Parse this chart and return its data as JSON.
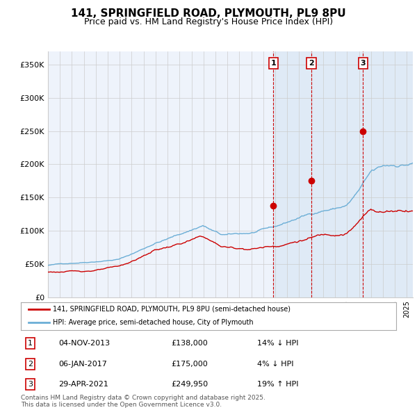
{
  "title": "141, SPRINGFIELD ROAD, PLYMOUTH, PL9 8PU",
  "subtitle": "Price paid vs. HM Land Registry's House Price Index (HPI)",
  "title_fontsize": 11,
  "subtitle_fontsize": 9,
  "hpi_color": "#6baed6",
  "price_color": "#cc0000",
  "bg_color": "#ffffff",
  "plot_bg_color": "#eef3fb",
  "grid_color": "#cccccc",
  "shaded_region_color": "#dce8f5",
  "ylim": [
    0,
    370000
  ],
  "yticks": [
    0,
    50000,
    100000,
    150000,
    200000,
    250000,
    300000,
    350000
  ],
  "ytick_labels": [
    "£0",
    "£50K",
    "£100K",
    "£150K",
    "£200K",
    "£250K",
    "£300K",
    "£350K"
  ],
  "xlim_start": 1995.0,
  "xlim_end": 2025.5,
  "sales": [
    {
      "num": 1,
      "date": 2013.84,
      "price": 138000,
      "label": "1",
      "pct": "14%",
      "direction": "↓",
      "date_str": "04-NOV-2013"
    },
    {
      "num": 2,
      "date": 2017.02,
      "price": 175000,
      "label": "2",
      "pct": "4%",
      "direction": "↓",
      "date_str": "06-JAN-2017"
    },
    {
      "num": 3,
      "date": 2021.33,
      "price": 249950,
      "label": "3",
      "pct": "19%",
      "direction": "↑",
      "date_str": "29-APR-2021"
    }
  ],
  "legend_house_label": "141, SPRINGFIELD ROAD, PLYMOUTH, PL9 8PU (semi-detached house)",
  "legend_hpi_label": "HPI: Average price, semi-detached house, City of Plymouth",
  "footer_text": "Contains HM Land Registry data © Crown copyright and database right 2025.\nThis data is licensed under the Open Government Licence v3.0."
}
